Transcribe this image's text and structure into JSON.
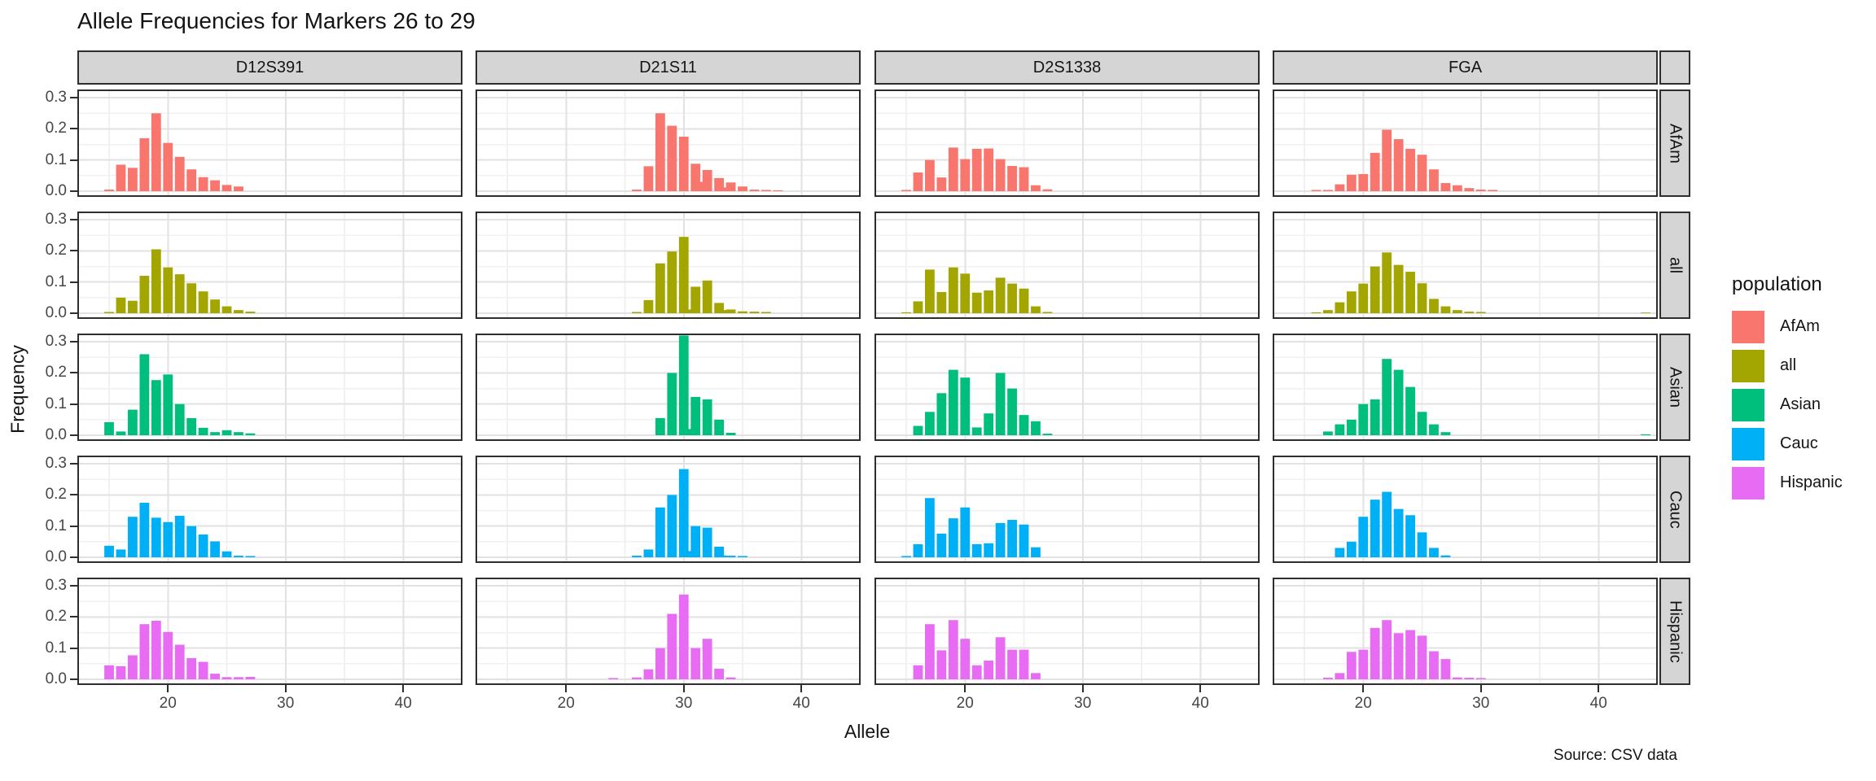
{
  "title": "Allele Frequencies for Markers 26 to 29",
  "caption": "Source: CSV data",
  "axes": {
    "x_label": "Allele",
    "y_label": "Frequency",
    "x_ticks": [
      "20",
      "30",
      "40"
    ],
    "y_ticks": [
      "0.0",
      "0.1",
      "0.2",
      "0.3"
    ]
  },
  "legend": {
    "title": "population",
    "items": [
      {
        "label": "AfAm",
        "color": "#F8766D"
      },
      {
        "label": "all",
        "color": "#A3A500"
      },
      {
        "label": "Asian",
        "color": "#00BF7D"
      },
      {
        "label": "Cauc",
        "color": "#00B0F6"
      },
      {
        "label": "Hispanic",
        "color": "#E76BF3"
      }
    ]
  },
  "chart_data": {
    "type": "bar",
    "facet_columns": [
      "D12S391",
      "D21S11",
      "D2S1338",
      "FGA"
    ],
    "facet_rows": [
      "AfAm",
      "all",
      "Asian",
      "Cauc",
      "Hispanic"
    ],
    "xlabel": "Allele",
    "ylabel": "Frequency",
    "x_domain": [
      12.3,
      45.1
    ],
    "ylim": [
      0,
      0.33
    ],
    "grid": "major-and-minor",
    "legend_position": "right",
    "panels": [
      {
        "marker": "D12S391",
        "population": "AfAm",
        "bars": [
          [
            15,
            0.005
          ],
          [
            16,
            0.085
          ],
          [
            17,
            0.075
          ],
          [
            18,
            0.17
          ],
          [
            19,
            0.25
          ],
          [
            20,
            0.155
          ],
          [
            21,
            0.11
          ],
          [
            22,
            0.07
          ],
          [
            23,
            0.045
          ],
          [
            24,
            0.035
          ],
          [
            25,
            0.02
          ],
          [
            26,
            0.015
          ]
        ]
      },
      {
        "marker": "D21S11",
        "population": "AfAm",
        "bars": [
          [
            26,
            0.005
          ],
          [
            27,
            0.08
          ],
          [
            28,
            0.25
          ],
          [
            29,
            0.21
          ],
          [
            30,
            0.175
          ],
          [
            31,
            0.088
          ],
          [
            31.2,
            0.03
          ],
          [
            32,
            0.068
          ],
          [
            33,
            0.042
          ],
          [
            33.2,
            0.012
          ],
          [
            34,
            0.028
          ],
          [
            35,
            0.015
          ],
          [
            36,
            0.005
          ],
          [
            37,
            0.004
          ],
          [
            38,
            0.003
          ]
        ]
      },
      {
        "marker": "D2S1338",
        "population": "AfAm",
        "bars": [
          [
            15,
            0.004
          ],
          [
            16,
            0.06
          ],
          [
            17,
            0.1
          ],
          [
            18,
            0.044
          ],
          [
            19,
            0.14
          ],
          [
            20,
            0.103
          ],
          [
            21,
            0.136
          ],
          [
            22,
            0.137
          ],
          [
            23,
            0.103
          ],
          [
            24,
            0.081
          ],
          [
            25,
            0.077
          ],
          [
            26,
            0.019
          ],
          [
            27,
            0.006
          ]
        ]
      },
      {
        "marker": "FGA",
        "population": "AfAm",
        "bars": [
          [
            16,
            0.004
          ],
          [
            17,
            0.004
          ],
          [
            18,
            0.022
          ],
          [
            19,
            0.053
          ],
          [
            20,
            0.055
          ],
          [
            21,
            0.123
          ],
          [
            22,
            0.197
          ],
          [
            23,
            0.167
          ],
          [
            24,
            0.136
          ],
          [
            25,
            0.117
          ],
          [
            26,
            0.07
          ],
          [
            27,
            0.026
          ],
          [
            28,
            0.019
          ],
          [
            29,
            0.01
          ],
          [
            30,
            0.005
          ],
          [
            31,
            0.004
          ]
        ]
      },
      {
        "marker": "D12S391",
        "population": "all",
        "bars": [
          [
            15,
            0.004
          ],
          [
            16,
            0.05
          ],
          [
            17,
            0.04
          ],
          [
            18,
            0.12
          ],
          [
            19,
            0.205
          ],
          [
            20,
            0.147
          ],
          [
            21,
            0.125
          ],
          [
            22,
            0.096
          ],
          [
            23,
            0.07
          ],
          [
            24,
            0.044
          ],
          [
            25,
            0.022
          ],
          [
            26,
            0.01
          ],
          [
            27,
            0.005
          ]
        ]
      },
      {
        "marker": "D21S11",
        "population": "all",
        "bars": [
          [
            26,
            0.004
          ],
          [
            27,
            0.042
          ],
          [
            28,
            0.16
          ],
          [
            29,
            0.198
          ],
          [
            30,
            0.245
          ],
          [
            30.2,
            0.012
          ],
          [
            31,
            0.085
          ],
          [
            32,
            0.105
          ],
          [
            33,
            0.033
          ],
          [
            33.2,
            0.01
          ],
          [
            34,
            0.012
          ],
          [
            35,
            0.006
          ],
          [
            36,
            0.005
          ],
          [
            37,
            0.004
          ]
        ]
      },
      {
        "marker": "D2S1338",
        "population": "all",
        "bars": [
          [
            15,
            0.003
          ],
          [
            16,
            0.038
          ],
          [
            17,
            0.14
          ],
          [
            18,
            0.068
          ],
          [
            19,
            0.147
          ],
          [
            20,
            0.127
          ],
          [
            21,
            0.066
          ],
          [
            22,
            0.073
          ],
          [
            23,
            0.114
          ],
          [
            24,
            0.095
          ],
          [
            25,
            0.079
          ],
          [
            26,
            0.022
          ],
          [
            27,
            0.004
          ]
        ]
      },
      {
        "marker": "FGA",
        "population": "all",
        "bars": [
          [
            16,
            0.003
          ],
          [
            17,
            0.01
          ],
          [
            18,
            0.035
          ],
          [
            19,
            0.07
          ],
          [
            20,
            0.095
          ],
          [
            21,
            0.15
          ],
          [
            22,
            0.195
          ],
          [
            23,
            0.155
          ],
          [
            24,
            0.133
          ],
          [
            25,
            0.096
          ],
          [
            26,
            0.046
          ],
          [
            27,
            0.022
          ],
          [
            28,
            0.01
          ],
          [
            29,
            0.005
          ],
          [
            30,
            0.004
          ],
          [
            44,
            0.002
          ]
        ]
      },
      {
        "marker": "D12S391",
        "population": "Asian",
        "bars": [
          [
            15,
            0.042
          ],
          [
            16,
            0.012
          ],
          [
            17,
            0.082
          ],
          [
            18,
            0.26
          ],
          [
            19,
            0.177
          ],
          [
            20,
            0.195
          ],
          [
            21,
            0.1
          ],
          [
            22,
            0.055
          ],
          [
            23,
            0.024
          ],
          [
            24,
            0.01
          ],
          [
            25,
            0.016
          ],
          [
            26,
            0.01
          ],
          [
            27,
            0.006
          ]
        ]
      },
      {
        "marker": "D21S11",
        "population": "Asian",
        "bars": [
          [
            28,
            0.055
          ],
          [
            29,
            0.2
          ],
          [
            30,
            0.32
          ],
          [
            30.2,
            0.02
          ],
          [
            31,
            0.123
          ],
          [
            32,
            0.115
          ],
          [
            33,
            0.05
          ],
          [
            34,
            0.008
          ]
        ]
      },
      {
        "marker": "D2S1338",
        "population": "Asian",
        "bars": [
          [
            16,
            0.03
          ],
          [
            17,
            0.075
          ],
          [
            18,
            0.135
          ],
          [
            19,
            0.21
          ],
          [
            20,
            0.185
          ],
          [
            21,
            0.025
          ],
          [
            22,
            0.07
          ],
          [
            23,
            0.2
          ],
          [
            24,
            0.15
          ],
          [
            25,
            0.065
          ],
          [
            26,
            0.045
          ],
          [
            27,
            0.005
          ]
        ]
      },
      {
        "marker": "FGA",
        "population": "Asian",
        "bars": [
          [
            17,
            0.012
          ],
          [
            18,
            0.035
          ],
          [
            19,
            0.05
          ],
          [
            20,
            0.1
          ],
          [
            21,
            0.115
          ],
          [
            22,
            0.245
          ],
          [
            23,
            0.21
          ],
          [
            24,
            0.155
          ],
          [
            25,
            0.075
          ],
          [
            26,
            0.035
          ],
          [
            27,
            0.01
          ],
          [
            44,
            0.003
          ]
        ]
      },
      {
        "marker": "D12S391",
        "population": "Cauc",
        "bars": [
          [
            15,
            0.037
          ],
          [
            16,
            0.025
          ],
          [
            17,
            0.13
          ],
          [
            18,
            0.175
          ],
          [
            19,
            0.127
          ],
          [
            20,
            0.113
          ],
          [
            21,
            0.133
          ],
          [
            22,
            0.1
          ],
          [
            23,
            0.073
          ],
          [
            24,
            0.051
          ],
          [
            25,
            0.019
          ],
          [
            26,
            0.005
          ],
          [
            27,
            0.004
          ]
        ]
      },
      {
        "marker": "D21S11",
        "population": "Cauc",
        "bars": [
          [
            26,
            0.005
          ],
          [
            27,
            0.025
          ],
          [
            28,
            0.16
          ],
          [
            29,
            0.2
          ],
          [
            30,
            0.283
          ],
          [
            30.2,
            0.02
          ],
          [
            31,
            0.1
          ],
          [
            32,
            0.095
          ],
          [
            33,
            0.034
          ],
          [
            33.2,
            0.006
          ],
          [
            34,
            0.005
          ],
          [
            35,
            0.004
          ]
        ]
      },
      {
        "marker": "D2S1338",
        "population": "Cauc",
        "bars": [
          [
            15,
            0.004
          ],
          [
            16,
            0.042
          ],
          [
            17,
            0.19
          ],
          [
            18,
            0.076
          ],
          [
            19,
            0.125
          ],
          [
            20,
            0.16
          ],
          [
            21,
            0.042
          ],
          [
            22,
            0.045
          ],
          [
            23,
            0.11
          ],
          [
            24,
            0.12
          ],
          [
            25,
            0.105
          ],
          [
            26,
            0.032
          ]
        ]
      },
      {
        "marker": "FGA",
        "population": "Cauc",
        "bars": [
          [
            18,
            0.03
          ],
          [
            19,
            0.05
          ],
          [
            20,
            0.13
          ],
          [
            21,
            0.185
          ],
          [
            22,
            0.21
          ],
          [
            23,
            0.155
          ],
          [
            24,
            0.135
          ],
          [
            25,
            0.08
          ],
          [
            26,
            0.03
          ],
          [
            27,
            0.006
          ]
        ]
      },
      {
        "marker": "D12S391",
        "population": "Hispanic",
        "bars": [
          [
            15,
            0.045
          ],
          [
            16,
            0.042
          ],
          [
            17,
            0.077
          ],
          [
            18,
            0.177
          ],
          [
            19,
            0.188
          ],
          [
            20,
            0.152
          ],
          [
            21,
            0.111
          ],
          [
            22,
            0.068
          ],
          [
            23,
            0.056
          ],
          [
            24,
            0.018
          ],
          [
            25,
            0.007
          ],
          [
            26,
            0.007
          ],
          [
            27,
            0.008
          ]
        ]
      },
      {
        "marker": "D21S11",
        "population": "Hispanic",
        "bars": [
          [
            24,
            0.004
          ],
          [
            26,
            0.006
          ],
          [
            27,
            0.032
          ],
          [
            28,
            0.1
          ],
          [
            29,
            0.21
          ],
          [
            30,
            0.272
          ],
          [
            31,
            0.1
          ],
          [
            32,
            0.13
          ],
          [
            33,
            0.034
          ],
          [
            34,
            0.006
          ]
        ]
      },
      {
        "marker": "D2S1338",
        "population": "Hispanic",
        "bars": [
          [
            16,
            0.045
          ],
          [
            17,
            0.177
          ],
          [
            18,
            0.093
          ],
          [
            19,
            0.19
          ],
          [
            20,
            0.13
          ],
          [
            21,
            0.045
          ],
          [
            22,
            0.06
          ],
          [
            23,
            0.135
          ],
          [
            24,
            0.095
          ],
          [
            25,
            0.095
          ],
          [
            26,
            0.02
          ]
        ]
      },
      {
        "marker": "FGA",
        "population": "Hispanic",
        "bars": [
          [
            17,
            0.005
          ],
          [
            18,
            0.02
          ],
          [
            19,
            0.088
          ],
          [
            20,
            0.095
          ],
          [
            21,
            0.165
          ],
          [
            22,
            0.19
          ],
          [
            23,
            0.148
          ],
          [
            24,
            0.158
          ],
          [
            25,
            0.14
          ],
          [
            26,
            0.09
          ],
          [
            27,
            0.065
          ],
          [
            28,
            0.006
          ],
          [
            29,
            0.005
          ],
          [
            30,
            0.004
          ]
        ]
      }
    ]
  }
}
